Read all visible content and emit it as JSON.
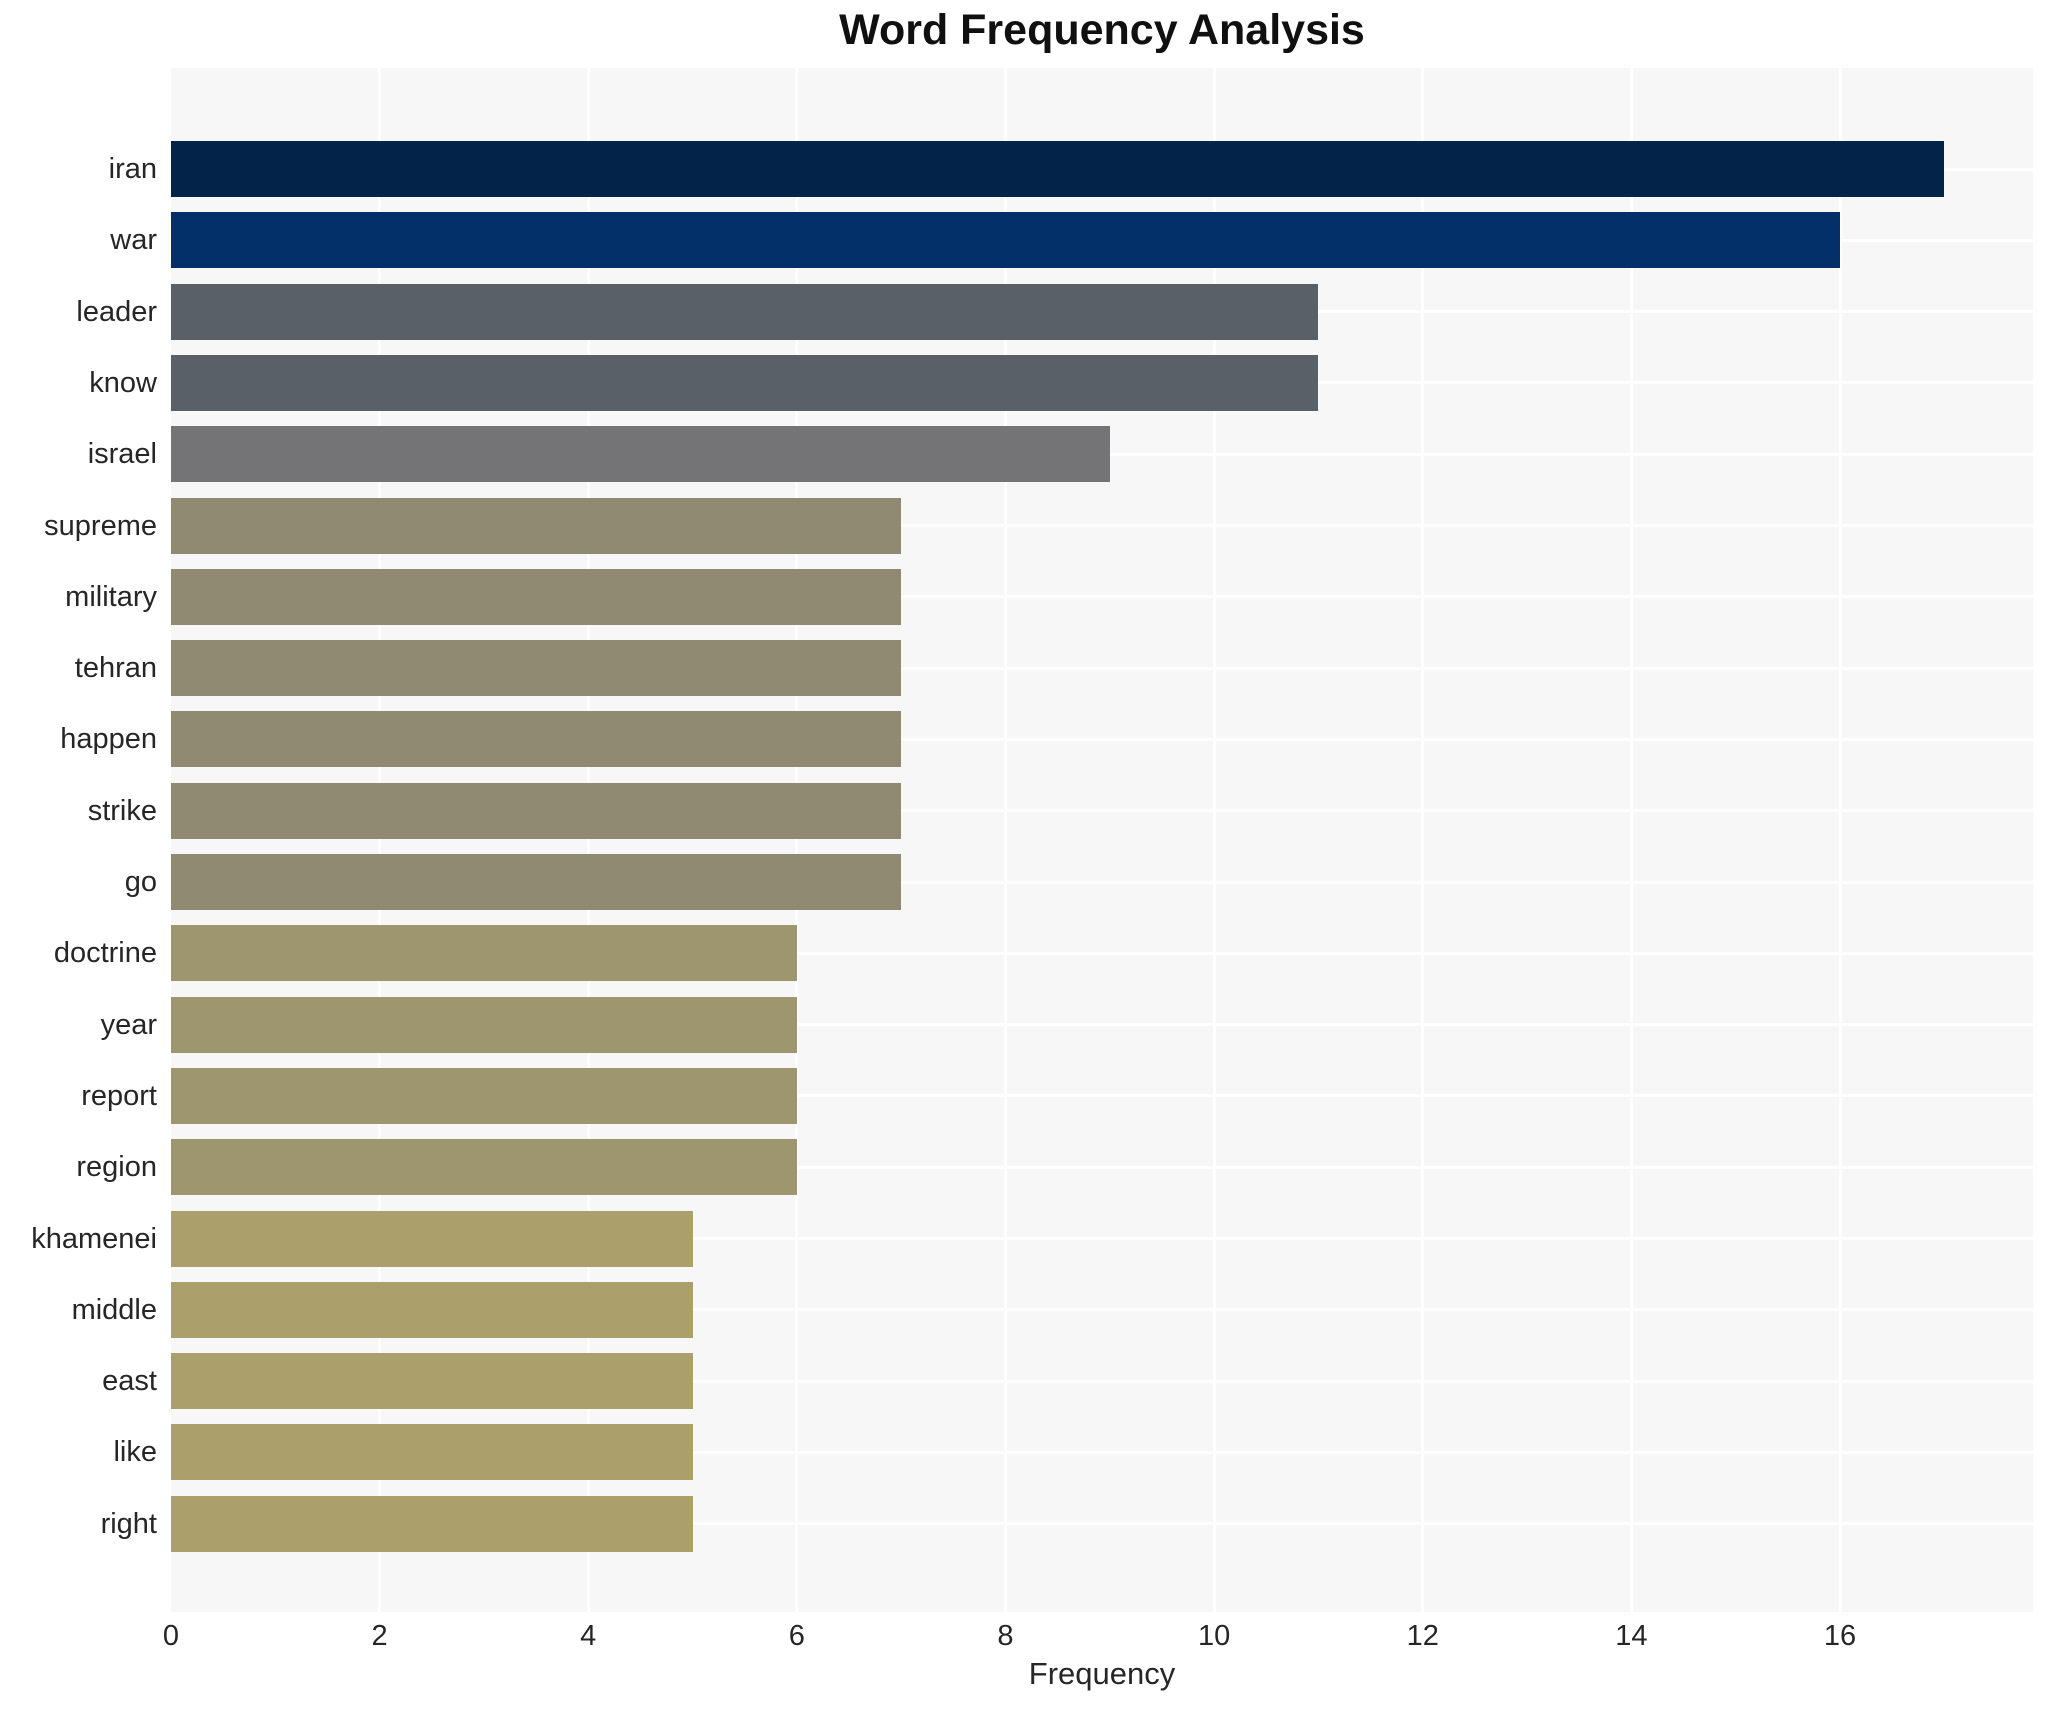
{
  "title": "Word Frequency Analysis",
  "xlabel": "Frequency",
  "chart_data": {
    "type": "bar",
    "orientation": "horizontal",
    "title": "Word Frequency Analysis",
    "xlabel": "Frequency",
    "ylabel": "",
    "categories": [
      "iran",
      "war",
      "leader",
      "know",
      "israel",
      "supreme",
      "military",
      "tehran",
      "happen",
      "strike",
      "go",
      "doctrine",
      "year",
      "report",
      "region",
      "khamenei",
      "middle",
      "east",
      "like",
      "right"
    ],
    "values": [
      17,
      16,
      11,
      11,
      9,
      7,
      7,
      7,
      7,
      7,
      7,
      6,
      6,
      6,
      6,
      5,
      5,
      5,
      5,
      5
    ],
    "bar_colors": [
      "#042349",
      "#04306a",
      "#596068",
      "#596068",
      "#747477",
      "#918a73",
      "#918a73",
      "#918a73",
      "#918a73",
      "#918a73",
      "#918a73",
      "#9e966e",
      "#9e966e",
      "#9e966e",
      "#9e966e",
      "#ab9f6b",
      "#ab9f6b",
      "#ab9f6b",
      "#ab9f6b",
      "#ab9f6b"
    ],
    "xlim": [
      0,
      17.85
    ],
    "xticks": [
      0,
      2,
      4,
      6,
      8,
      10,
      12,
      14,
      16
    ],
    "grid": "white gridlines on light-gray plot background",
    "legend": "none",
    "plot_bg": "#f7f7f8",
    "page_bg": "#ffffff",
    "label_color": "#262626",
    "title_color": "#101010"
  }
}
